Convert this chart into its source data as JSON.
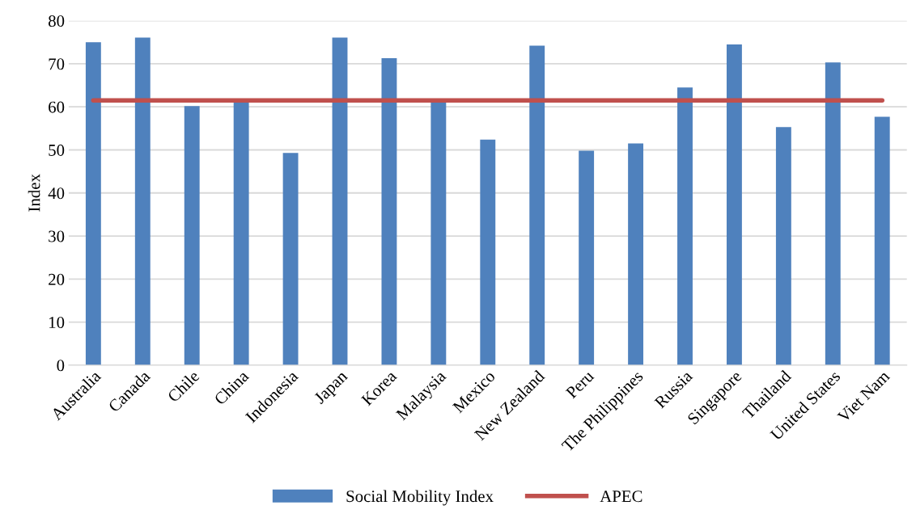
{
  "chart_data": {
    "type": "bar",
    "ylabel": "Index",
    "categories": [
      "Australia",
      "Canada",
      "Chile",
      "China",
      "Indonesia",
      "Japan",
      "Korea",
      "Malaysia",
      "Mexico",
      "New Zealand",
      "Peru",
      "The Philippines",
      "Russia",
      "Singapore",
      "Thailand",
      "United States",
      "Viet Nam"
    ],
    "series": [
      {
        "name": "Social Mobility Index",
        "color": "#4f81bd",
        "values": [
          75.0,
          76.1,
          60.2,
          61.1,
          49.3,
          76.1,
          71.3,
          61.1,
          52.4,
          74.2,
          49.8,
          51.5,
          64.5,
          74.5,
          55.3,
          70.3,
          57.7
        ]
      },
      {
        "name": "APEC",
        "type": "line",
        "color": "#c0504d",
        "values": [
          61.5,
          61.5,
          61.5,
          61.5,
          61.5,
          61.5,
          61.5,
          61.5,
          61.5,
          61.5,
          61.5,
          61.5,
          61.5,
          61.5,
          61.5,
          61.5,
          61.5
        ]
      }
    ],
    "ylim": [
      0,
      80
    ],
    "yticks": [
      0,
      10,
      20,
      30,
      40,
      50,
      60,
      70,
      80
    ],
    "grid": "y",
    "legend": "bottom"
  }
}
